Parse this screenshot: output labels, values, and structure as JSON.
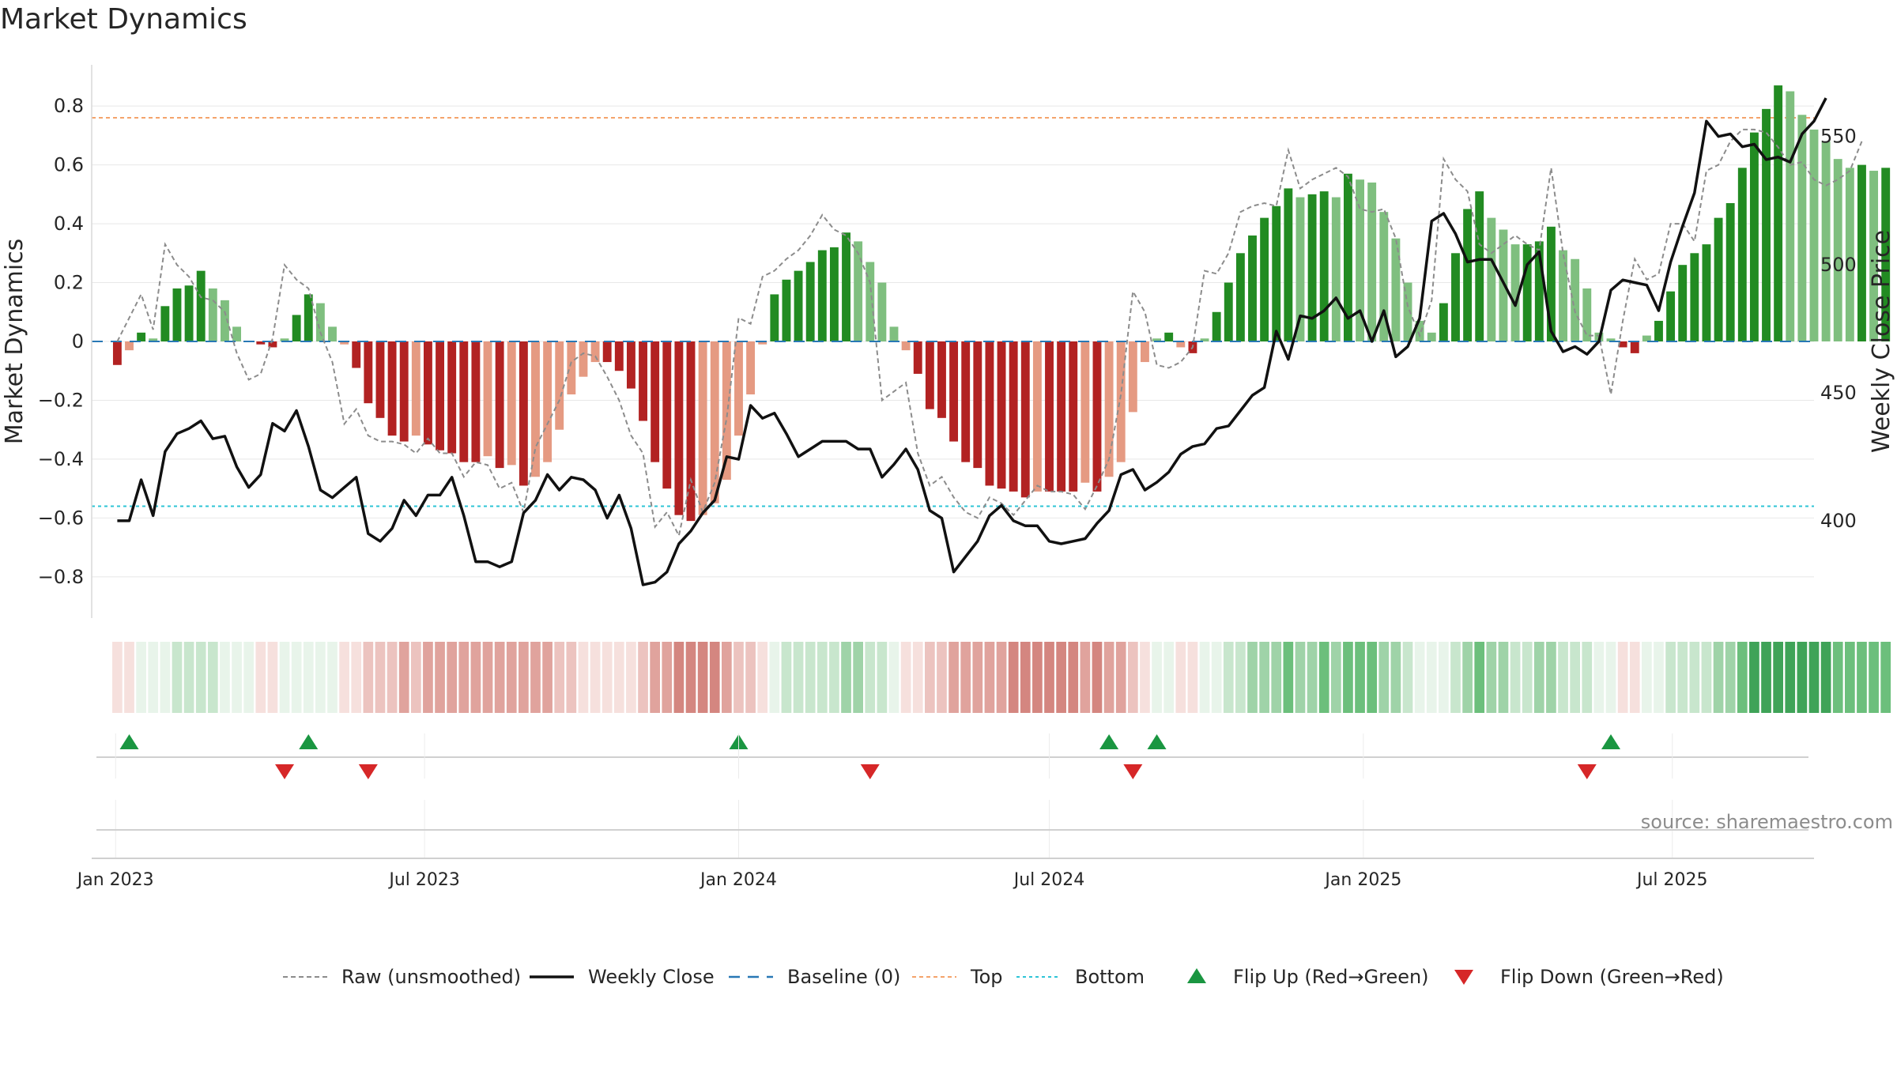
{
  "title": "Market Dynamics",
  "colors": {
    "green_strong": "#228B22",
    "green_light": "#7fbf7f",
    "red_strong": "#b22222",
    "red_light": "#e59a82",
    "raw": "#8c8c8c",
    "close": "#111111",
    "baseline": "#2878b5",
    "top": "#f4a36b",
    "bottom": "#2ec4d6",
    "flip_up": "#1a9641",
    "flip_down": "#d62728",
    "grid": "#e8e8e8",
    "source": "#8c8c8c"
  },
  "source_text": "source: sharemaestro.com",
  "chart_data": {
    "type": "bar",
    "title": "Market Dynamics",
    "ylabel": "Market Dynamics",
    "y2label": "Weekly Close Price",
    "ylim": [
      -0.94,
      0.94
    ],
    "y2lim": [
      362,
      578
    ],
    "yticks": [
      "0.8",
      "0.6",
      "0.4",
      "0.2",
      "0",
      "−0.2",
      "−0.4",
      "−0.6",
      "−0.8"
    ],
    "ytick_values": [
      0.8,
      0.6,
      0.4,
      0.2,
      0,
      -0.2,
      -0.4,
      -0.6,
      -0.8
    ],
    "y2ticks": [
      "550",
      "500",
      "450",
      "400"
    ],
    "y2tick_values": [
      550,
      500,
      450,
      400
    ],
    "x_start": "2023-01-02",
    "xlim": [
      "2022-12-18",
      "2025-09-22"
    ],
    "xticks": [
      "Jan 2023",
      "Jul 2023",
      "Jan 2024",
      "Jul 2024",
      "Jan 2025",
      "Jul 2025"
    ],
    "xtick_dates": [
      "2023-01-01",
      "2023-07-01",
      "2024-01-01",
      "2024-07-01",
      "2025-01-01",
      "2025-07-01"
    ],
    "top_level": 0.76,
    "bottom_level": -0.56,
    "baseline": 0,
    "legend_position": "bottom-center",
    "grid": true,
    "series": [
      {
        "name": "Market Dynamics (smoothed)",
        "kind": "bar",
        "values": [
          -0.08,
          -0.03,
          0.03,
          0.01,
          0.12,
          0.18,
          0.19,
          0.24,
          0.18,
          0.14,
          0.05,
          0.0,
          -0.01,
          -0.02,
          0.01,
          0.09,
          0.16,
          0.13,
          0.05,
          -0.01,
          -0.09,
          -0.21,
          -0.26,
          -0.32,
          -0.34,
          -0.32,
          -0.35,
          -0.37,
          -0.38,
          -0.41,
          -0.41,
          -0.39,
          -0.43,
          -0.42,
          -0.49,
          -0.46,
          -0.41,
          -0.3,
          -0.18,
          -0.12,
          -0.07,
          -0.07,
          -0.1,
          -0.16,
          -0.27,
          -0.41,
          -0.5,
          -0.59,
          -0.61,
          -0.59,
          -0.55,
          -0.47,
          -0.32,
          -0.18,
          -0.01,
          0.16,
          0.21,
          0.24,
          0.27,
          0.31,
          0.32,
          0.37,
          0.34,
          0.27,
          0.2,
          0.05,
          -0.03,
          -0.11,
          -0.23,
          -0.26,
          -0.34,
          -0.41,
          -0.43,
          -0.49,
          -0.5,
          -0.51,
          -0.53,
          -0.51,
          -0.51,
          -0.51,
          -0.51,
          -0.48,
          -0.51,
          -0.46,
          -0.41,
          -0.24,
          -0.07,
          0.01,
          0.03,
          -0.02,
          -0.04,
          0.01,
          0.1,
          0.2,
          0.3,
          0.36,
          0.42,
          0.46,
          0.52,
          0.49,
          0.5,
          0.51,
          0.49,
          0.57,
          0.55,
          0.54,
          0.44,
          0.35,
          0.2,
          0.07,
          0.03,
          0.13,
          0.3,
          0.45,
          0.51,
          0.42,
          0.38,
          0.33,
          0.33,
          0.34,
          0.39,
          0.31,
          0.28,
          0.18,
          0.03,
          0.01,
          -0.02,
          -0.04,
          0.02,
          0.07,
          0.17,
          0.26,
          0.3,
          0.33,
          0.42,
          0.47,
          0.59,
          0.71,
          0.79,
          0.87,
          0.85,
          0.77,
          0.72,
          0.68,
          0.62,
          0.59,
          0.6,
          0.58,
          0.59
        ]
      },
      {
        "name": "Raw (unsmoothed)",
        "kind": "line",
        "values": [
          0.0,
          0.08,
          0.16,
          0.04,
          0.33,
          0.26,
          0.22,
          0.15,
          0.14,
          0.1,
          -0.04,
          -0.13,
          -0.11,
          0.01,
          0.26,
          0.21,
          0.18,
          0.03,
          -0.07,
          -0.28,
          -0.23,
          -0.32,
          -0.34,
          -0.34,
          -0.35,
          -0.38,
          -0.33,
          -0.38,
          -0.38,
          -0.46,
          -0.41,
          -0.42,
          -0.5,
          -0.48,
          -0.58,
          -0.36,
          -0.28,
          -0.2,
          -0.07,
          -0.04,
          -0.05,
          -0.12,
          -0.2,
          -0.32,
          -0.38,
          -0.63,
          -0.58,
          -0.66,
          -0.47,
          -0.58,
          -0.48,
          -0.26,
          0.08,
          0.06,
          0.22,
          0.24,
          0.28,
          0.31,
          0.36,
          0.43,
          0.38,
          0.36,
          0.3,
          0.2,
          -0.2,
          -0.17,
          -0.14,
          -0.38,
          -0.49,
          -0.46,
          -0.53,
          -0.58,
          -0.6,
          -0.53,
          -0.55,
          -0.59,
          -0.54,
          -0.49,
          -0.51,
          -0.51,
          -0.52,
          -0.57,
          -0.49,
          -0.4,
          -0.18,
          0.17,
          0.1,
          -0.08,
          -0.09,
          -0.07,
          -0.02,
          0.24,
          0.23,
          0.3,
          0.44,
          0.46,
          0.47,
          0.46,
          0.65,
          0.52,
          0.55,
          0.57,
          0.59,
          0.56,
          0.45,
          0.44,
          0.45,
          0.35,
          0.12,
          0.02,
          0.14,
          0.62,
          0.55,
          0.51,
          0.33,
          0.3,
          0.33,
          0.36,
          0.33,
          0.31,
          0.59,
          0.3,
          0.1,
          0.02,
          0.02,
          -0.18,
          0.07,
          0.28,
          0.21,
          0.23,
          0.4,
          0.4,
          0.34,
          0.58,
          0.6,
          0.68,
          0.72,
          0.72,
          0.71,
          0.66,
          0.6,
          0.61,
          0.55,
          0.53,
          0.55,
          0.58,
          0.68
        ]
      },
      {
        "name": "Weekly Close",
        "kind": "line",
        "axis": "right",
        "values": [
          400,
          400,
          416,
          402,
          427,
          434,
          436,
          439,
          432,
          433,
          421,
          413,
          418,
          438,
          435,
          443,
          429,
          412,
          409,
          413,
          417,
          395,
          392,
          397,
          408,
          402,
          410,
          410,
          417,
          402,
          384,
          384,
          382,
          384,
          403,
          408,
          418,
          412,
          417,
          416,
          412,
          401,
          410,
          397,
          375,
          376,
          380,
          391,
          396,
          403,
          408,
          425,
          424,
          445,
          440,
          442,
          434,
          425,
          428,
          431,
          431,
          431,
          428,
          428,
          417,
          422,
          428,
          420,
          404,
          401,
          380,
          386,
          392,
          402,
          406,
          400,
          398,
          398,
          392,
          391,
          392,
          393,
          399,
          404,
          418,
          420,
          412,
          415,
          419,
          426,
          429,
          430,
          436,
          437,
          443,
          449,
          452,
          474,
          463,
          480,
          479,
          482,
          487,
          479,
          482,
          470,
          482,
          464,
          468,
          479,
          517,
          520,
          512,
          501,
          502,
          502,
          493,
          484,
          500,
          505,
          474,
          466,
          468,
          465,
          470,
          490,
          494,
          493,
          492,
          482,
          501,
          515,
          528,
          556,
          550,
          551,
          546,
          547,
          541,
          542,
          540,
          551,
          556,
          565
        ]
      },
      {
        "name": "Baseline (0)",
        "kind": "hline"
      },
      {
        "name": "Top",
        "kind": "hline"
      },
      {
        "name": "Bottom",
        "kind": "hline"
      },
      {
        "name": "Flip Up (Red→Green)",
        "kind": "marker",
        "dates": [
          "2023-01-09",
          "2023-04-24",
          "2024-01-01",
          "2024-08-05",
          "2024-09-02",
          "2025-05-26"
        ]
      },
      {
        "name": "Flip Down (Green→Red)",
        "kind": "marker",
        "dates": [
          "2023-04-10",
          "2023-05-29",
          "2024-03-18",
          "2024-08-19",
          "2025-05-12"
        ]
      }
    ]
  },
  "legend": [
    {
      "label": "Raw (unsmoothed)",
      "kind": "dashed-gray"
    },
    {
      "label": "Weekly Close",
      "kind": "solid-black"
    },
    {
      "label": "Baseline (0)",
      "kind": "dashed-blue"
    },
    {
      "label": "Top",
      "kind": "dotted-orange"
    },
    {
      "label": "Bottom",
      "kind": "dotted-cyan"
    },
    {
      "label": "Flip Up (Red→Green)",
      "kind": "triangle-up"
    },
    {
      "label": "Flip Down (Green→Red)",
      "kind": "triangle-down"
    }
  ]
}
